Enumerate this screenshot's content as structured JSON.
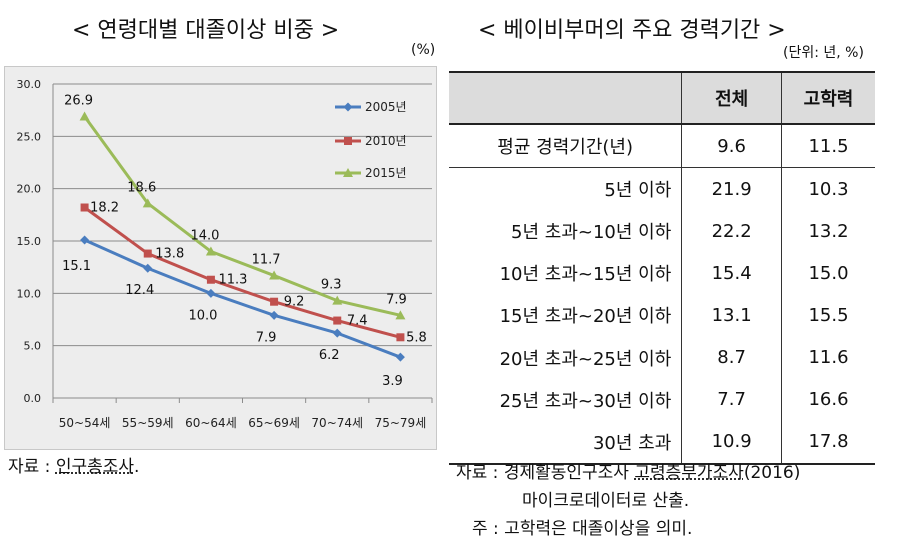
{
  "left_title": "< 연령대별 대졸이상 비중 >",
  "left_unit": "(%)",
  "right_title": "< 베이비부머의 주요 경력기간 >",
  "right_unit": "(단위: 년, %)",
  "chart_data": {
    "type": "line",
    "title": "< 연령대별 대졸이상 비중 >",
    "categories": [
      "50~54세",
      "55~59세",
      "60~64세",
      "65~69세",
      "70~74세",
      "75~79세"
    ],
    "ylim": [
      0,
      30
    ],
    "yticks": [
      "0.0",
      "5.0",
      "10.0",
      "15.0",
      "20.0",
      "25.0",
      "30.0"
    ],
    "grid": true,
    "legend_position": "top-right",
    "series": [
      {
        "name": "2005년",
        "color": "#4a7dbf",
        "marker": "diamond",
        "values": [
          15.1,
          12.4,
          10.0,
          7.9,
          6.2,
          3.9
        ],
        "labels": [
          "15.1",
          "12.4",
          "10.0",
          "7.9",
          "6.2",
          "3.9"
        ]
      },
      {
        "name": "2010년",
        "color": "#c0504d",
        "marker": "square",
        "values": [
          18.2,
          13.8,
          11.3,
          9.2,
          7.4,
          5.8
        ],
        "labels": [
          "18.2",
          "13.8",
          "11.3",
          "9.2",
          "7.4",
          "5.8"
        ]
      },
      {
        "name": "2015년",
        "color": "#9bbb59",
        "marker": "triangle",
        "values": [
          26.9,
          18.6,
          14.0,
          11.7,
          9.3,
          7.9
        ],
        "labels": [
          "26.9",
          "18.6",
          "14.0",
          "11.7",
          "9.3",
          "7.9"
        ]
      }
    ]
  },
  "table": {
    "headers": [
      "",
      "전체",
      "고학력"
    ],
    "rows": [
      {
        "label": "평균 경력기간(년)",
        "total": "9.6",
        "high": "11.5"
      },
      {
        "label": "5년 이하",
        "total": "21.9",
        "high": "10.3"
      },
      {
        "label": "5년 초과~10년 이하",
        "total": "22.2",
        "high": "13.2"
      },
      {
        "label": "10년 초과~15년 이하",
        "total": "15.4",
        "high": "15.0"
      },
      {
        "label": "15년 초과~20년 이하",
        "total": "13.1",
        "high": "15.5"
      },
      {
        "label": "20년 초과~25년 이하",
        "total": "8.7",
        "high": "11.6"
      },
      {
        "label": "25년 초과~30년 이하",
        "total": "7.7",
        "high": "16.6"
      },
      {
        "label": "30년 초과",
        "total": "10.9",
        "high": "17.8"
      }
    ]
  },
  "left_source": {
    "prefix": "자료 : ",
    "name": "인구총조사",
    "suffix": "."
  },
  "right_source": {
    "line1_prefix": "자료 :  경제활동인구조사 ",
    "line1_name": "고령층부가조사",
    "line1_suffix": "(2016)",
    "line2": "마이크로데이터로 산출.",
    "note": "주 : 고학력은 대졸이상을 의미."
  }
}
